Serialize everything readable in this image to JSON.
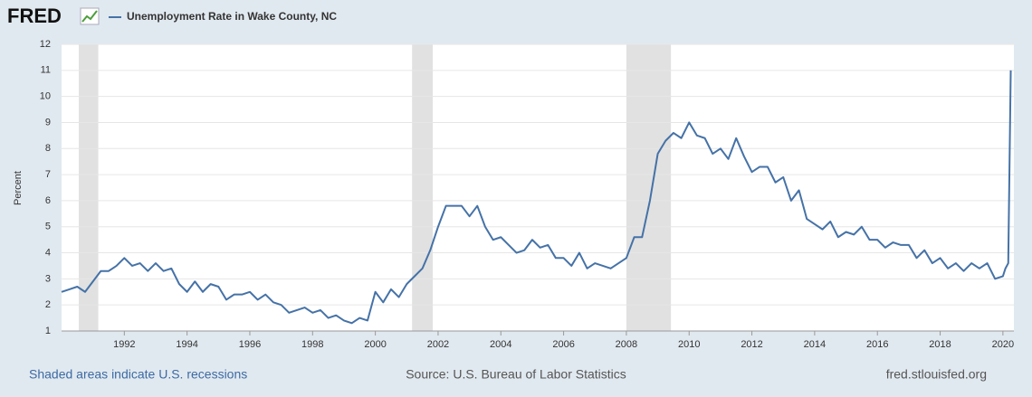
{
  "logo": "FRED",
  "chart_data": {
    "type": "line",
    "ylabel": "Percent",
    "x": [
      1990,
      1990.25,
      1990.5,
      1990.75,
      1991,
      1991.25,
      1991.5,
      1991.75,
      1992,
      1992.25,
      1992.5,
      1992.75,
      1993,
      1993.25,
      1993.5,
      1993.75,
      1994,
      1994.25,
      1994.5,
      1994.75,
      1995,
      1995.25,
      1995.5,
      1995.75,
      1996,
      1996.25,
      1996.5,
      1996.75,
      1997,
      1997.25,
      1997.5,
      1997.75,
      1998,
      1998.25,
      1998.5,
      1998.75,
      1999,
      1999.25,
      1999.5,
      1999.75,
      2000,
      2000.25,
      2000.5,
      2000.75,
      2001,
      2001.25,
      2001.5,
      2001.75,
      2002,
      2002.25,
      2002.5,
      2002.75,
      2003,
      2003.25,
      2003.5,
      2003.75,
      2004,
      2004.25,
      2004.5,
      2004.75,
      2005,
      2005.25,
      2005.5,
      2005.75,
      2006,
      2006.25,
      2006.5,
      2006.75,
      2007,
      2007.25,
      2007.5,
      2007.75,
      2008,
      2008.25,
      2008.5,
      2008.75,
      2009,
      2009.25,
      2009.5,
      2009.75,
      2010,
      2010.25,
      2010.5,
      2010.75,
      2011,
      2011.25,
      2011.5,
      2011.75,
      2012,
      2012.25,
      2012.5,
      2012.75,
      2013,
      2013.25,
      2013.5,
      2013.75,
      2014,
      2014.25,
      2014.5,
      2014.75,
      2015,
      2015.25,
      2015.5,
      2015.75,
      2016,
      2016.25,
      2016.5,
      2016.75,
      2017,
      2017.25,
      2017.5,
      2017.75,
      2018,
      2018.25,
      2018.5,
      2018.75,
      2019,
      2019.25,
      2019.5,
      2019.75,
      2020,
      2020.08,
      2020.17,
      2020.25
    ],
    "series": [
      {
        "name": "Unemployment Rate in Wake County, NC",
        "color": "#4572a7",
        "values": [
          2.5,
          2.6,
          2.7,
          2.5,
          2.9,
          3.3,
          3.3,
          3.5,
          3.8,
          3.5,
          3.6,
          3.3,
          3.6,
          3.3,
          3.4,
          2.8,
          2.5,
          2.9,
          2.5,
          2.8,
          2.7,
          2.2,
          2.4,
          2.4,
          2.5,
          2.2,
          2.4,
          2.1,
          2.0,
          1.7,
          1.8,
          1.9,
          1.7,
          1.8,
          1.5,
          1.6,
          1.4,
          1.3,
          1.5,
          1.4,
          2.5,
          2.1,
          2.6,
          2.3,
          2.8,
          3.1,
          3.4,
          4.1,
          5.0,
          5.8,
          5.8,
          5.8,
          5.4,
          5.8,
          5.0,
          4.5,
          4.6,
          4.3,
          4.0,
          4.1,
          4.5,
          4.2,
          4.3,
          3.8,
          3.8,
          3.5,
          4.0,
          3.4,
          3.6,
          3.5,
          3.4,
          3.6,
          3.8,
          4.6,
          4.6,
          6.0,
          7.8,
          8.3,
          8.6,
          8.4,
          9.0,
          8.5,
          8.4,
          7.8,
          8.0,
          7.6,
          8.4,
          7.7,
          7.1,
          7.3,
          7.3,
          6.7,
          6.9,
          6.0,
          6.4,
          5.3,
          5.1,
          4.9,
          5.2,
          4.6,
          4.8,
          4.7,
          5.0,
          4.5,
          4.5,
          4.2,
          4.4,
          4.3,
          4.3,
          3.8,
          4.1,
          3.6,
          3.8,
          3.4,
          3.6,
          3.3,
          3.6,
          3.4,
          3.6,
          3.0,
          3.1,
          3.4,
          3.6,
          11.0
        ]
      }
    ],
    "recessions": [
      [
        1990.55,
        1991.17
      ],
      [
        2001.17,
        2001.83
      ],
      [
        2008.0,
        2009.42
      ]
    ],
    "xlim": [
      1990,
      2020.35
    ],
    "xticks": [
      1992,
      1994,
      1996,
      1998,
      2000,
      2002,
      2004,
      2006,
      2008,
      2010,
      2012,
      2014,
      2016,
      2018,
      2020
    ],
    "ylim": [
      1,
      12
    ],
    "yticks": [
      1,
      2,
      3,
      4,
      5,
      6,
      7,
      8,
      9,
      10,
      11,
      12
    ],
    "grid": true
  },
  "footer": {
    "left": "Shaded areas indicate U.S. recessions",
    "center": "Source: U.S. Bureau of Labor Statistics",
    "right": "fred.stlouisfed.org"
  }
}
